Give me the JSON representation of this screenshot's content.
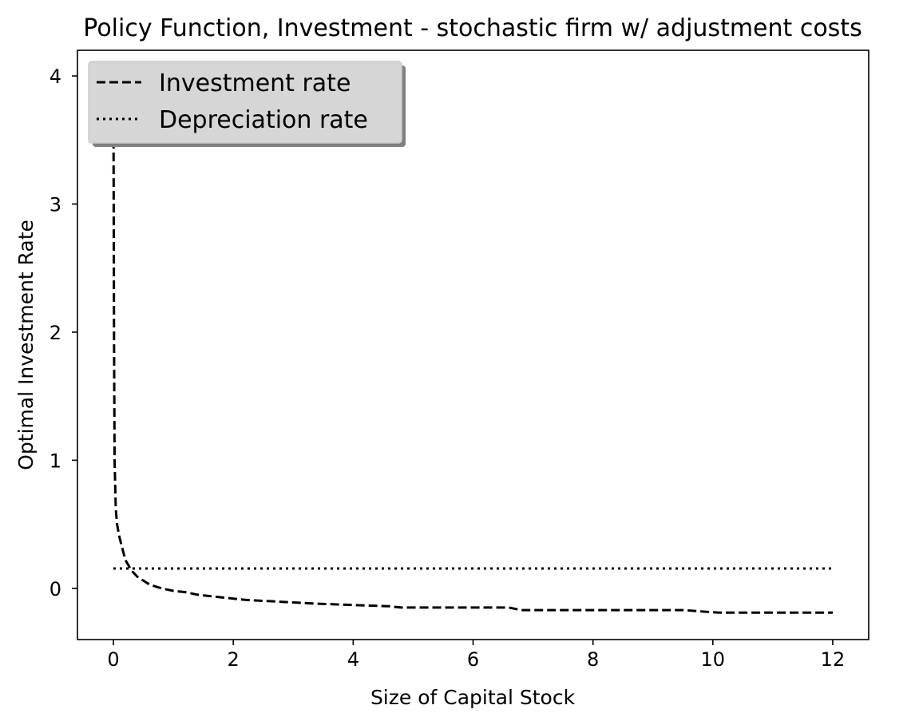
{
  "chart_data": {
    "type": "line",
    "title": "Policy Function, Investment - stochastic firm w/ adjustment costs",
    "xlabel": "Size of Capital Stock",
    "ylabel": "Optimal Investment Rate",
    "xlim": [
      -0.6,
      12.6
    ],
    "ylim": [
      -0.4,
      4.2
    ],
    "xticks": [
      0,
      2,
      4,
      6,
      8,
      10,
      12
    ],
    "yticks": [
      0,
      1,
      2,
      3,
      4
    ],
    "legend_position": "top-left",
    "grid": false,
    "series": [
      {
        "name": "Investment rate",
        "style": "dashed",
        "color": "#000000",
        "x": [
          0.0,
          0.005,
          0.01,
          0.02,
          0.04,
          0.06,
          0.1,
          0.15,
          0.2,
          0.3,
          0.4,
          0.5,
          0.6,
          0.8,
          1.0,
          1.2,
          1.4,
          1.6,
          1.8,
          2.2,
          2.6,
          3.0,
          3.4,
          4.0,
          4.6,
          4.8,
          5.5,
          6.0,
          6.6,
          6.8,
          7.5,
          8.5,
          9.5,
          9.8,
          10.1,
          11.0,
          12.0
        ],
        "y": [
          4.0,
          3.0,
          2.0,
          1.0,
          0.62,
          0.5,
          0.4,
          0.31,
          0.22,
          0.14,
          0.09,
          0.06,
          0.03,
          0.0,
          -0.02,
          -0.03,
          -0.05,
          -0.06,
          -0.07,
          -0.09,
          -0.1,
          -0.11,
          -0.12,
          -0.13,
          -0.14,
          -0.15,
          -0.15,
          -0.15,
          -0.15,
          -0.17,
          -0.17,
          -0.17,
          -0.17,
          -0.18,
          -0.19,
          -0.19,
          -0.19
        ]
      },
      {
        "name": "Depreciation rate",
        "style": "dotted",
        "color": "#000000",
        "x": [
          0.0,
          12.0
        ],
        "y": [
          0.155,
          0.155
        ]
      }
    ]
  }
}
